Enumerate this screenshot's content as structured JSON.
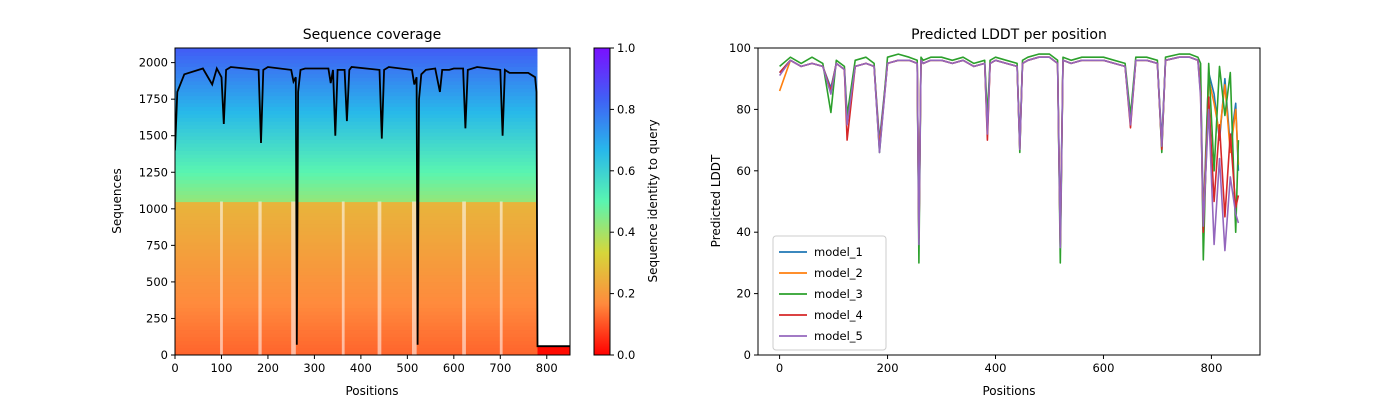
{
  "chart_data": [
    {
      "type": "heatmap",
      "title": "Sequence coverage",
      "xlabel": "Positions",
      "ylabel": "Sequences",
      "xlim": [
        0,
        850
      ],
      "ylim": [
        0,
        2100
      ],
      "xticks": [
        0,
        100,
        200,
        300,
        400,
        500,
        600,
        700,
        800
      ],
      "yticks": [
        0,
        250,
        500,
        750,
        1000,
        1250,
        1500,
        1750,
        2000
      ],
      "colorbar": {
        "label": "Sequence identity to query",
        "min": 0.0,
        "max": 1.0,
        "ticks": [
          "0.0",
          "0.2",
          "0.4",
          "0.6",
          "0.8",
          "1.0"
        ],
        "colors": [
          "#ff0000",
          "#ff8a3d",
          "#d6d63a",
          "#5af5b0",
          "#28b8ea",
          "#4060f5",
          "#7a10ff"
        ]
      },
      "identity_bands": [
        {
          "seq_from": 0,
          "seq_to": 200,
          "identity": 0.15
        },
        {
          "seq_from": 200,
          "seq_to": 1050,
          "identity": 0.25
        },
        {
          "seq_from": 1050,
          "seq_to": 1300,
          "identity": 0.45
        },
        {
          "seq_from": 1300,
          "seq_to": 1700,
          "identity": 0.6
        },
        {
          "seq_from": 1700,
          "seq_to": 1900,
          "identity": 0.68
        },
        {
          "seq_from": 1900,
          "seq_to": 2100,
          "identity": 0.82
        }
      ],
      "msa_extent": {
        "x_end": 780,
        "tail_x_end": 850,
        "tail_depth": 60
      },
      "coverage_line": {
        "x": [
          0,
          5,
          20,
          60,
          80,
          90,
          100,
          105,
          110,
          120,
          180,
          185,
          190,
          200,
          250,
          255,
          260,
          262,
          265,
          270,
          280,
          330,
          335,
          340,
          345,
          350,
          365,
          370,
          375,
          380,
          440,
          445,
          450,
          460,
          510,
          515,
          520,
          522,
          525,
          530,
          540,
          560,
          570,
          575,
          590,
          600,
          620,
          625,
          630,
          650,
          700,
          705,
          710,
          720,
          760,
          775,
          778,
          780,
          800,
          850
        ],
        "y": [
          1400,
          1800,
          1920,
          1960,
          1850,
          1960,
          1900,
          1580,
          1950,
          1970,
          1950,
          1450,
          1950,
          1970,
          1950,
          1870,
          1900,
          70,
          1800,
          1950,
          1960,
          1960,
          1860,
          1950,
          1500,
          1950,
          1950,
          1600,
          1950,
          1970,
          1950,
          1480,
          1950,
          1970,
          1950,
          1850,
          1900,
          70,
          1750,
          1920,
          1950,
          1960,
          1800,
          1950,
          1950,
          1960,
          1960,
          1550,
          1950,
          1970,
          1950,
          1500,
          1950,
          1930,
          1930,
          1900,
          1800,
          60,
          60,
          60
        ]
      }
    },
    {
      "type": "line",
      "title": "Predicted LDDT per position",
      "xlabel": "Positions",
      "ylabel": "Predicted LDDT",
      "xlim": [
        -40,
        890
      ],
      "ylim": [
        0,
        100
      ],
      "xticks": [
        0,
        200,
        400,
        600,
        800
      ],
      "yticks": [
        0,
        20,
        40,
        60,
        80,
        100
      ],
      "legend_position": "lower-left",
      "x": [
        0,
        20,
        40,
        60,
        80,
        95,
        105,
        120,
        125,
        140,
        160,
        175,
        185,
        200,
        220,
        240,
        255,
        258,
        262,
        266,
        280,
        300,
        320,
        340,
        360,
        380,
        385,
        390,
        400,
        420,
        440,
        445,
        450,
        460,
        480,
        500,
        515,
        520,
        525,
        540,
        560,
        580,
        600,
        620,
        640,
        650,
        660,
        680,
        700,
        708,
        715,
        740,
        760,
        775,
        780,
        785,
        795,
        805,
        815,
        825,
        835,
        845,
        850
      ],
      "series": [
        {
          "name": "model_1",
          "color": "#1f77b4",
          "values": [
            92,
            96,
            94,
            95,
            94,
            87,
            95,
            93,
            77,
            94,
            95,
            94,
            70,
            95,
            96,
            96,
            95,
            40,
            96,
            95,
            96,
            96,
            95,
            96,
            94,
            95,
            75,
            95,
            96,
            95,
            94,
            70,
            95,
            96,
            97,
            97,
            95,
            40,
            96,
            95,
            96,
            96,
            96,
            95,
            94,
            77,
            96,
            96,
            95,
            70,
            96,
            97,
            97,
            96,
            90,
            45,
            92,
            85,
            70,
            90,
            68,
            82,
            60
          ]
        },
        {
          "name": "model_2",
          "color": "#ff7f0e",
          "values": [
            86,
            96,
            94,
            95,
            94,
            86,
            95,
            93,
            76,
            94,
            95,
            94,
            68,
            95,
            96,
            96,
            95,
            38,
            96,
            95,
            96,
            96,
            95,
            96,
            94,
            95,
            73,
            95,
            96,
            95,
            94,
            68,
            95,
            96,
            97,
            97,
            95,
            35,
            96,
            95,
            96,
            96,
            96,
            95,
            94,
            76,
            96,
            96,
            95,
            68,
            96,
            97,
            97,
            96,
            88,
            42,
            90,
            82,
            72,
            88,
            66,
            80,
            62
          ]
        },
        {
          "name": "model_3",
          "color": "#2ca02c",
          "values": [
            94,
            97,
            95,
            97,
            95,
            79,
            96,
            94,
            78,
            96,
            97,
            95,
            66,
            97,
            98,
            97,
            96,
            30,
            97,
            96,
            97,
            97,
            96,
            97,
            95,
            96,
            78,
            96,
            97,
            96,
            95,
            66,
            96,
            97,
            98,
            98,
            96,
            30,
            97,
            96,
            97,
            97,
            97,
            96,
            95,
            78,
            97,
            97,
            96,
            66,
            97,
            98,
            98,
            97,
            95,
            31,
            95,
            60,
            94,
            78,
            92,
            40,
            70
          ]
        },
        {
          "name": "model_4",
          "color": "#d62728",
          "values": [
            92,
            96,
            94,
            95,
            94,
            86,
            95,
            93,
            70,
            94,
            95,
            94,
            67,
            95,
            96,
            96,
            95,
            38,
            96,
            95,
            96,
            96,
            95,
            96,
            94,
            95,
            70,
            95,
            96,
            95,
            94,
            67,
            95,
            96,
            97,
            97,
            95,
            36,
            96,
            95,
            96,
            96,
            96,
            95,
            94,
            74,
            96,
            96,
            95,
            67,
            96,
            97,
            97,
            96,
            85,
            40,
            84,
            50,
            75,
            45,
            72,
            48,
            52
          ]
        },
        {
          "name": "model_5",
          "color": "#9467bd",
          "values": [
            91,
            96,
            94,
            95,
            94,
            85,
            95,
            93,
            75,
            94,
            95,
            94,
            66,
            95,
            96,
            96,
            95,
            36,
            96,
            95,
            96,
            96,
            95,
            96,
            94,
            95,
            72,
            95,
            96,
            95,
            94,
            67,
            95,
            96,
            97,
            97,
            95,
            35,
            96,
            95,
            96,
            96,
            96,
            95,
            94,
            75,
            96,
            96,
            95,
            68,
            96,
            97,
            97,
            96,
            84,
            42,
            80,
            36,
            64,
            34,
            58,
            46,
            43
          ]
        }
      ]
    }
  ]
}
